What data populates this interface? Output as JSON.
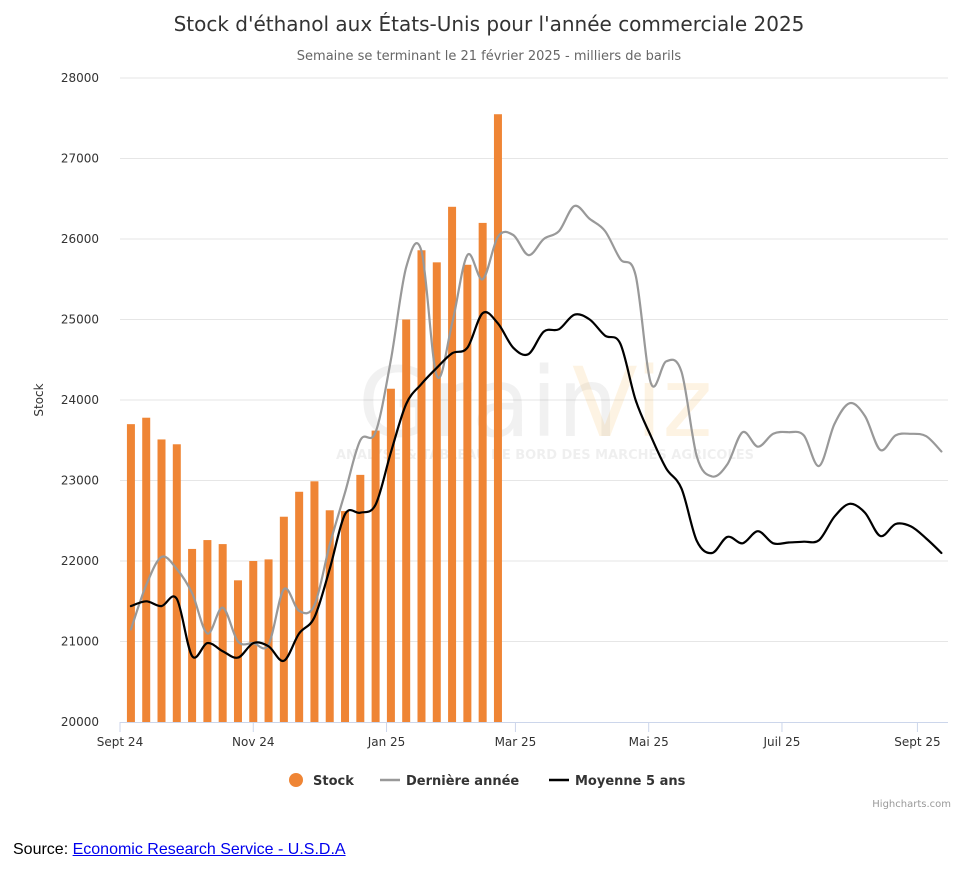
{
  "chart_data": {
    "type": "bar+line",
    "title": "Stock d'éthanol aux États-Unis pour l'année commerciale 2025",
    "subtitle": "Semaine se terminant le 21 février 2025 - milliers de barils",
    "ylabel": "Stock",
    "ylim": [
      20000,
      28000
    ],
    "yticks": [
      20000,
      21000,
      22000,
      23000,
      24000,
      25000,
      26000,
      27000,
      28000
    ],
    "xaxis": {
      "type": "date",
      "range": [
        "2024-09-01",
        "2025-09-15"
      ],
      "tick_labels": [
        {
          "date": "2024-09-01",
          "label": "Sept 24"
        },
        {
          "date": "2024-11-01",
          "label": "Nov 24"
        },
        {
          "date": "2025-01-01",
          "label": "Jan 25"
        },
        {
          "date": "2025-03-01",
          "label": "Mar 25"
        },
        {
          "date": "2025-05-01",
          "label": "Mai 25"
        },
        {
          "date": "2025-07-01",
          "label": "Juil 25"
        },
        {
          "date": "2025-09-01",
          "label": "Sept 25"
        }
      ]
    },
    "grid": true,
    "legend_position": "bottom-center",
    "series": [
      {
        "name": "Stock",
        "type": "column",
        "color": "#ef8535",
        "points": [
          [
            "2024-09-06",
            23700
          ],
          [
            "2024-09-13",
            23780
          ],
          [
            "2024-09-20",
            23510
          ],
          [
            "2024-09-27",
            23450
          ],
          [
            "2024-10-04",
            22150
          ],
          [
            "2024-10-11",
            22260
          ],
          [
            "2024-10-18",
            22210
          ],
          [
            "2024-10-25",
            21760
          ],
          [
            "2024-11-01",
            22000
          ],
          [
            "2024-11-08",
            22020
          ],
          [
            "2024-11-15",
            22550
          ],
          [
            "2024-11-22",
            22860
          ],
          [
            "2024-11-29",
            22990
          ],
          [
            "2024-12-06",
            22630
          ],
          [
            "2024-12-13",
            22620
          ],
          [
            "2024-12-20",
            23070
          ],
          [
            "2024-12-27",
            23620
          ],
          [
            "2025-01-03",
            24140
          ],
          [
            "2025-01-10",
            25000
          ],
          [
            "2025-01-17",
            25860
          ],
          [
            "2025-01-24",
            25710
          ],
          [
            "2025-01-31",
            26400
          ],
          [
            "2025-02-07",
            25680
          ],
          [
            "2025-02-14",
            26200
          ],
          [
            "2025-02-21",
            27550
          ]
        ]
      },
      {
        "name": "Dernière année",
        "type": "line",
        "color": "#999999",
        "points": [
          [
            "2024-09-06",
            21150
          ],
          [
            "2024-09-13",
            21700
          ],
          [
            "2024-09-20",
            22050
          ],
          [
            "2024-09-27",
            21900
          ],
          [
            "2024-10-04",
            21600
          ],
          [
            "2024-10-11",
            21100
          ],
          [
            "2024-10-18",
            21420
          ],
          [
            "2024-10-25",
            21000
          ],
          [
            "2024-11-01",
            20980
          ],
          [
            "2024-11-08",
            20960
          ],
          [
            "2024-11-15",
            21650
          ],
          [
            "2024-11-22",
            21380
          ],
          [
            "2024-11-29",
            21450
          ],
          [
            "2024-12-06",
            22200
          ],
          [
            "2024-12-13",
            22850
          ],
          [
            "2024-12-20",
            23500
          ],
          [
            "2024-12-27",
            23600
          ],
          [
            "2025-01-03",
            24500
          ],
          [
            "2025-01-10",
            25650
          ],
          [
            "2025-01-17",
            25850
          ],
          [
            "2025-01-24",
            24300
          ],
          [
            "2025-01-31",
            24950
          ],
          [
            "2025-02-07",
            25800
          ],
          [
            "2025-02-14",
            25500
          ],
          [
            "2025-02-21",
            26030
          ],
          [
            "2025-02-28",
            26050
          ],
          [
            "2025-03-07",
            25800
          ],
          [
            "2025-03-14",
            26000
          ],
          [
            "2025-03-21",
            26100
          ],
          [
            "2025-03-28",
            26410
          ],
          [
            "2025-04-04",
            26250
          ],
          [
            "2025-04-11",
            26100
          ],
          [
            "2025-04-18",
            25750
          ],
          [
            "2025-04-25",
            25550
          ],
          [
            "2025-05-02",
            24210
          ],
          [
            "2025-05-09",
            24480
          ],
          [
            "2025-05-16",
            24350
          ],
          [
            "2025-05-23",
            23300
          ],
          [
            "2025-05-30",
            23050
          ],
          [
            "2025-06-06",
            23200
          ],
          [
            "2025-06-13",
            23600
          ],
          [
            "2025-06-20",
            23420
          ],
          [
            "2025-06-27",
            23580
          ],
          [
            "2025-07-04",
            23600
          ],
          [
            "2025-07-11",
            23560
          ],
          [
            "2025-07-18",
            23180
          ],
          [
            "2025-07-25",
            23700
          ],
          [
            "2025-08-01",
            23960
          ],
          [
            "2025-08-08",
            23800
          ],
          [
            "2025-08-15",
            23380
          ],
          [
            "2025-08-22",
            23560
          ],
          [
            "2025-08-29",
            23580
          ],
          [
            "2025-09-05",
            23550
          ],
          [
            "2025-09-12",
            23360
          ]
        ]
      },
      {
        "name": "Moyenne 5 ans",
        "type": "line",
        "color": "#000000",
        "points": [
          [
            "2024-09-06",
            21440
          ],
          [
            "2024-09-13",
            21500
          ],
          [
            "2024-09-20",
            21440
          ],
          [
            "2024-09-27",
            21530
          ],
          [
            "2024-10-04",
            20820
          ],
          [
            "2024-10-11",
            20980
          ],
          [
            "2024-10-18",
            20880
          ],
          [
            "2024-10-25",
            20800
          ],
          [
            "2024-11-01",
            20980
          ],
          [
            "2024-11-08",
            20940
          ],
          [
            "2024-11-15",
            20760
          ],
          [
            "2024-11-22",
            21100
          ],
          [
            "2024-11-29",
            21300
          ],
          [
            "2024-12-06",
            21900
          ],
          [
            "2024-12-13",
            22580
          ],
          [
            "2024-12-20",
            22600
          ],
          [
            "2024-12-27",
            22700
          ],
          [
            "2025-01-03",
            23350
          ],
          [
            "2025-01-10",
            23950
          ],
          [
            "2025-01-17",
            24200
          ],
          [
            "2025-01-24",
            24400
          ],
          [
            "2025-01-31",
            24580
          ],
          [
            "2025-02-07",
            24650
          ],
          [
            "2025-02-14",
            25080
          ],
          [
            "2025-02-21",
            24950
          ],
          [
            "2025-02-28",
            24650
          ],
          [
            "2025-03-07",
            24570
          ],
          [
            "2025-03-14",
            24850
          ],
          [
            "2025-03-21",
            24880
          ],
          [
            "2025-03-28",
            25060
          ],
          [
            "2025-04-04",
            25000
          ],
          [
            "2025-04-11",
            24800
          ],
          [
            "2025-04-18",
            24700
          ],
          [
            "2025-04-25",
            24000
          ],
          [
            "2025-05-02",
            23550
          ],
          [
            "2025-05-09",
            23150
          ],
          [
            "2025-05-16",
            22900
          ],
          [
            "2025-05-23",
            22250
          ],
          [
            "2025-05-30",
            22100
          ],
          [
            "2025-06-06",
            22300
          ],
          [
            "2025-06-13",
            22220
          ],
          [
            "2025-06-20",
            22370
          ],
          [
            "2025-06-27",
            22220
          ],
          [
            "2025-07-04",
            22230
          ],
          [
            "2025-07-11",
            22240
          ],
          [
            "2025-07-18",
            22260
          ],
          [
            "2025-07-25",
            22550
          ],
          [
            "2025-08-01",
            22710
          ],
          [
            "2025-08-08",
            22600
          ],
          [
            "2025-08-15",
            22310
          ],
          [
            "2025-08-22",
            22460
          ],
          [
            "2025-08-29",
            22430
          ],
          [
            "2025-09-05",
            22280
          ],
          [
            "2025-09-12",
            22100
          ]
        ]
      }
    ]
  },
  "watermark": {
    "main": "Grain",
    "accent": "Viz",
    "sub": "ANALYSE & TABLEAU DE BORD DES MARCHÉS AGRICOLES"
  },
  "credits": "Highcharts.com",
  "source": {
    "prefix": "Source: ",
    "link_text": "Economic Research Service - U.S.D.A"
  }
}
